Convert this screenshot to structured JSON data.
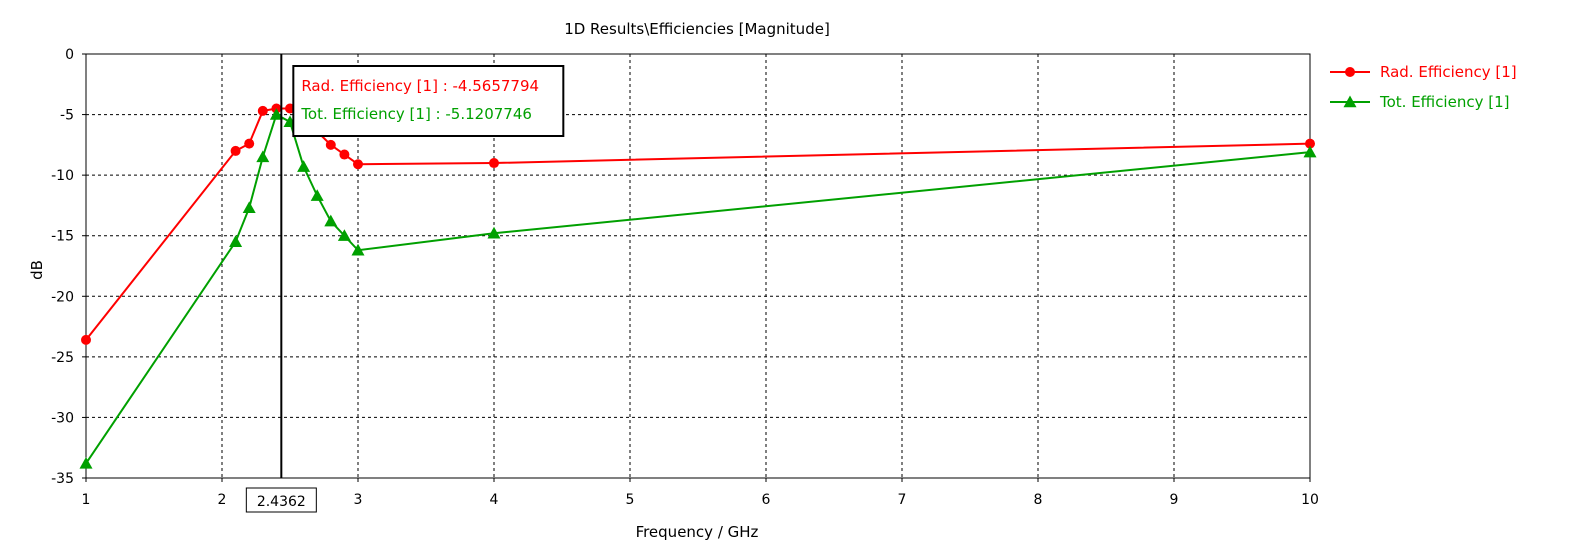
{
  "chart_data": {
    "type": "line",
    "title": "1D Results\\Efficiencies [Magnitude]",
    "xlabel": "Frequency / GHz",
    "ylabel": "dB",
    "xlim": [
      1,
      10
    ],
    "ylim": [
      -35,
      0
    ],
    "x_ticks": [
      "1",
      "2",
      "3",
      "4",
      "5",
      "6",
      "7",
      "8",
      "9",
      "10"
    ],
    "y_ticks": [
      "0",
      "-5",
      "-10",
      "-15",
      "-20",
      "-25",
      "-30",
      "-35"
    ],
    "grid": true,
    "legend_position": "right",
    "series": [
      {
        "name": "Rad. Efficiency [1]",
        "color": "#ff0000",
        "marker": "circle",
        "x": [
          1,
          2.1,
          2.2,
          2.3,
          2.4,
          2.5,
          2.6,
          2.7,
          2.8,
          2.9,
          3,
          4,
          10
        ],
        "y": [
          -23.6,
          -8.0,
          -7.4,
          -4.7,
          -4.5,
          -4.5,
          -5.0,
          -6.4,
          -7.5,
          -8.3,
          -9.1,
          -9.0,
          -7.4
        ]
      },
      {
        "name": "Tot. Efficiency [1]",
        "color": "#00a000",
        "marker": "triangle",
        "x": [
          1,
          2.1,
          2.2,
          2.3,
          2.4,
          2.5,
          2.6,
          2.7,
          2.8,
          2.9,
          3,
          4,
          10
        ],
        "y": [
          -33.8,
          -15.5,
          -12.7,
          -8.5,
          -5.0,
          -5.6,
          -9.3,
          -11.7,
          -13.8,
          -15.0,
          -16.2,
          -14.8,
          -8.1
        ]
      }
    ],
    "cursor": {
      "x_label": "2.4362",
      "x": 2.4362,
      "readouts": [
        {
          "text": "Rad. Efficiency [1] : -4.5657794",
          "color": "#ff0000"
        },
        {
          "text": "Tot. Efficiency [1] : -5.1207746",
          "color": "#00a000"
        }
      ]
    }
  }
}
